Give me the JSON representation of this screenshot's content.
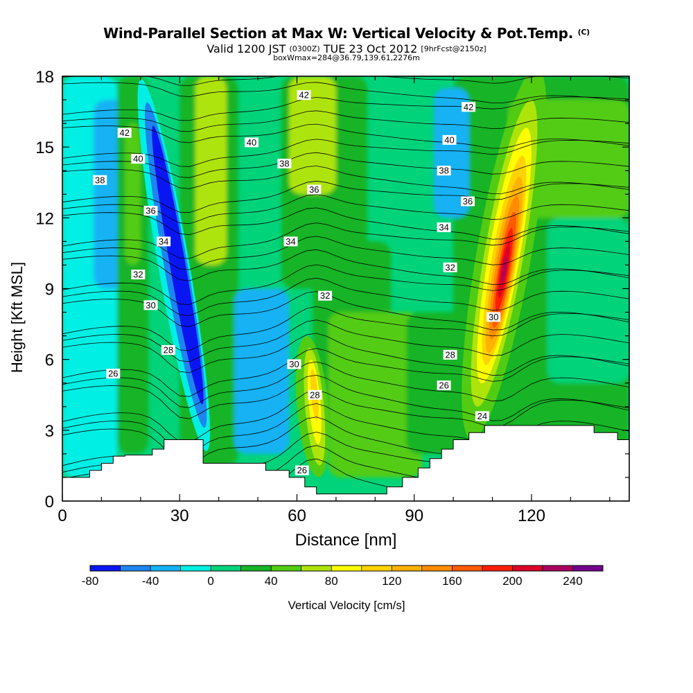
{
  "header": {
    "title": "Wind-Parallel Section at Max W: Vertical Velocity & Pot.Temp.",
    "copyright": "(C)",
    "valid_prefix": "Valid 1200 JST",
    "valid_utc": "(0300Z)",
    "valid_date": "TUE 23 Oct 2012",
    "forecast": "[9hrFcst@2150z]",
    "box_info": "boxWmax=284@36.79,139.61,2276m"
  },
  "chart_data": {
    "type": "heatmap",
    "xlabel": "Distance [nm]",
    "ylabel": "Height [Kft MSL]",
    "xlim": [
      0,
      145
    ],
    "ylim": [
      0,
      18
    ],
    "x_ticks": [
      0,
      30,
      60,
      90,
      120
    ],
    "y_ticks": [
      0,
      3,
      6,
      9,
      12,
      15,
      18
    ],
    "colorbar": {
      "label": "Vertical Velocity [cm/s]",
      "levels": [
        -80,
        -60,
        -40,
        -20,
        0,
        20,
        40,
        60,
        80,
        100,
        120,
        140,
        160,
        180,
        200,
        220,
        240,
        260
      ],
      "tick_labels": [
        -80,
        -40,
        0,
        40,
        80,
        120,
        160,
        200,
        240
      ],
      "colors": [
        "#0a16f2",
        "#1e84f0",
        "#13b2f4",
        "#00efe4",
        "#00d37a",
        "#16b428",
        "#52cc12",
        "#aee40a",
        "#ffff00",
        "#ffd300",
        "#ffb200",
        "#ff8c00",
        "#ff5a00",
        "#ff1e00",
        "#dd0028",
        "#aa0060",
        "#74008c"
      ]
    },
    "vertical_velocity_cells": [
      {
        "x": [
          0,
          14
        ],
        "y": [
          1,
          18
        ],
        "w": -10
      },
      {
        "x": [
          8,
          18
        ],
        "y": [
          9,
          17
        ],
        "w": -30
      },
      {
        "x": [
          14,
          22
        ],
        "y": [
          2,
          18
        ],
        "w": 30
      },
      {
        "x": [
          16,
          20
        ],
        "y": [
          10,
          16
        ],
        "w": 45
      },
      {
        "x": [
          30,
          45
        ],
        "y": [
          1.5,
          18
        ],
        "w": 35
      },
      {
        "x": [
          34,
          42
        ],
        "y": [
          10,
          18
        ],
        "w": 75
      },
      {
        "x": [
          56,
          78
        ],
        "y": [
          9,
          18
        ],
        "w": 35
      },
      {
        "x": [
          58,
          70
        ],
        "y": [
          13,
          18
        ],
        "w": 75
      },
      {
        "x": [
          64,
          84
        ],
        "y": [
          3,
          11
        ],
        "w": 30
      },
      {
        "x": [
          68,
          92
        ],
        "y": [
          1,
          8
        ],
        "w": 40
      },
      {
        "x": [
          88,
          105
        ],
        "y": [
          2,
          8
        ],
        "w": 30
      },
      {
        "x": [
          100,
          145
        ],
        "y": [
          2,
          18
        ],
        "w": 30
      },
      {
        "x": [
          114,
          145
        ],
        "y": [
          12,
          17
        ],
        "w": 40
      },
      {
        "x": [
          124,
          145
        ],
        "y": [
          5,
          12
        ],
        "w": 15
      },
      {
        "x": [
          44,
          58
        ],
        "y": [
          2,
          9
        ],
        "w": -25
      },
      {
        "x": [
          95,
          104
        ],
        "y": [
          12,
          17.5
        ],
        "w": -25
      }
    ],
    "vertical_velocity_plumes": [
      {
        "cx": 28.5,
        "cy": 10,
        "rx": 4,
        "ry": 8,
        "rot": -10,
        "w": -20
      },
      {
        "cx": 29.0,
        "cy": 10,
        "rx": 3,
        "ry": 7,
        "rot": -10,
        "w": -45
      },
      {
        "cx": 29.5,
        "cy": 10,
        "rx": 2,
        "ry": 6,
        "rot": -10,
        "w": -65
      },
      {
        "cx": 29.8,
        "cy": 10,
        "rx": 1,
        "ry": 5,
        "rot": -10,
        "w": -85
      },
      {
        "cx": 64,
        "cy": 4,
        "rx": 4,
        "ry": 3,
        "rot": -5,
        "w": 50
      },
      {
        "cx": 64.5,
        "cy": 4,
        "rx": 2.4,
        "ry": 2.5,
        "rot": -5,
        "w": 70
      },
      {
        "cx": 64.5,
        "cy": 4.2,
        "rx": 1.5,
        "ry": 1.8,
        "rot": -5,
        "w": 90
      },
      {
        "cx": 64.5,
        "cy": 4.5,
        "rx": 0.9,
        "ry": 1.1,
        "rot": -5,
        "w": 110
      },
      {
        "cx": 113,
        "cy": 10.5,
        "rx": 7,
        "ry": 8,
        "rot": 10,
        "w": 45
      },
      {
        "cx": 113,
        "cy": 10.5,
        "rx": 5,
        "ry": 6.6,
        "rot": 10,
        "w": 65
      },
      {
        "cx": 113,
        "cy": 10.4,
        "rx": 4,
        "ry": 5.5,
        "rot": 10,
        "w": 90
      },
      {
        "cx": 113,
        "cy": 10.2,
        "rx": 3.2,
        "ry": 4.5,
        "rot": 10,
        "w": 110
      },
      {
        "cx": 113,
        "cy": 10,
        "rx": 2.6,
        "ry": 3.8,
        "rot": 10,
        "w": 130
      },
      {
        "cx": 113,
        "cy": 9.9,
        "rx": 2.1,
        "ry": 3.1,
        "rot": 10,
        "w": 150
      },
      {
        "cx": 113,
        "cy": 9.8,
        "rx": 1.6,
        "ry": 2.5,
        "rot": 10,
        "w": 170
      },
      {
        "cx": 113,
        "cy": 9.8,
        "rx": 1.2,
        "ry": 1.8,
        "rot": 10,
        "w": 190
      },
      {
        "cx": 113,
        "cy": 9.8,
        "rx": 0.8,
        "ry": 1.2,
        "rot": 10,
        "w": 210
      },
      {
        "cx": 113,
        "cy": 9.8,
        "rx": 0.4,
        "ry": 0.6,
        "rot": 10,
        "w": 230
      }
    ],
    "terrain": [
      [
        0,
        1
      ],
      [
        7,
        1
      ],
      [
        7,
        1.3
      ],
      [
        10,
        1.3
      ],
      [
        10,
        1.6
      ],
      [
        13,
        1.6
      ],
      [
        13,
        1.9
      ],
      [
        16,
        1.9
      ],
      [
        16,
        1.95
      ],
      [
        23,
        1.95
      ],
      [
        23,
        2.2
      ],
      [
        26,
        2.2
      ],
      [
        26,
        2.6
      ],
      [
        36,
        2.6
      ],
      [
        36,
        1.6
      ],
      [
        52,
        1.6
      ],
      [
        52,
        1.3
      ],
      [
        58,
        1.3
      ],
      [
        58,
        1.0
      ],
      [
        62,
        1.0
      ],
      [
        62,
        0.6
      ],
      [
        65,
        0.6
      ],
      [
        65,
        0.3
      ],
      [
        83,
        0.3
      ],
      [
        83,
        0.6
      ],
      [
        87,
        0.6
      ],
      [
        87,
        1.0
      ],
      [
        91,
        1.0
      ],
      [
        91,
        1.4
      ],
      [
        94,
        1.4
      ],
      [
        94,
        1.8
      ],
      [
        97,
        1.8
      ],
      [
        97,
        2.2
      ],
      [
        100,
        2.2
      ],
      [
        100,
        2.6
      ],
      [
        104,
        2.6
      ],
      [
        104,
        2.9
      ],
      [
        108,
        2.9
      ],
      [
        108,
        3.2
      ],
      [
        136,
        3.2
      ],
      [
        136,
        2.9
      ],
      [
        142,
        2.9
      ],
      [
        142,
        2.6
      ],
      [
        145,
        2.6
      ]
    ],
    "theta_labels": [
      {
        "x": 15.9,
        "y": 15.6,
        "text": "42"
      },
      {
        "x": 19.4,
        "y": 14.5,
        "text": "40"
      },
      {
        "x": 9.6,
        "y": 13.6,
        "text": "38"
      },
      {
        "x": 22.6,
        "y": 12.3,
        "text": "36"
      },
      {
        "x": 25.9,
        "y": 11.0,
        "text": "34"
      },
      {
        "x": 19.4,
        "y": 9.6,
        "text": "32"
      },
      {
        "x": 22.6,
        "y": 8.3,
        "text": "30"
      },
      {
        "x": 27.1,
        "y": 6.4,
        "text": "28"
      },
      {
        "x": 13.0,
        "y": 5.4,
        "text": "26"
      },
      {
        "x": 61.8,
        "y": 17.2,
        "text": "42"
      },
      {
        "x": 48.4,
        "y": 15.2,
        "text": "40"
      },
      {
        "x": 56.8,
        "y": 14.3,
        "text": "38"
      },
      {
        "x": 64.4,
        "y": 13.2,
        "text": "36"
      },
      {
        "x": 58.4,
        "y": 11.0,
        "text": "34"
      },
      {
        "x": 67.2,
        "y": 8.7,
        "text": "32"
      },
      {
        "x": 59.3,
        "y": 5.8,
        "text": "30"
      },
      {
        "x": 64.6,
        "y": 4.5,
        "text": "28"
      },
      {
        "x": 61.3,
        "y": 1.3,
        "text": "26"
      },
      {
        "x": 103.9,
        "y": 16.7,
        "text": "42"
      },
      {
        "x": 99.0,
        "y": 15.3,
        "text": "40"
      },
      {
        "x": 97.6,
        "y": 14.0,
        "text": "38"
      },
      {
        "x": 103.7,
        "y": 12.7,
        "text": "36"
      },
      {
        "x": 97.6,
        "y": 11.6,
        "text": "34"
      },
      {
        "x": 99.2,
        "y": 9.9,
        "text": "32"
      },
      {
        "x": 110.3,
        "y": 7.8,
        "text": "30"
      },
      {
        "x": 99.2,
        "y": 6.2,
        "text": "28"
      },
      {
        "x": 97.6,
        "y": 4.9,
        "text": "26"
      },
      {
        "x": 107.4,
        "y": 3.6,
        "text": "24"
      }
    ]
  }
}
